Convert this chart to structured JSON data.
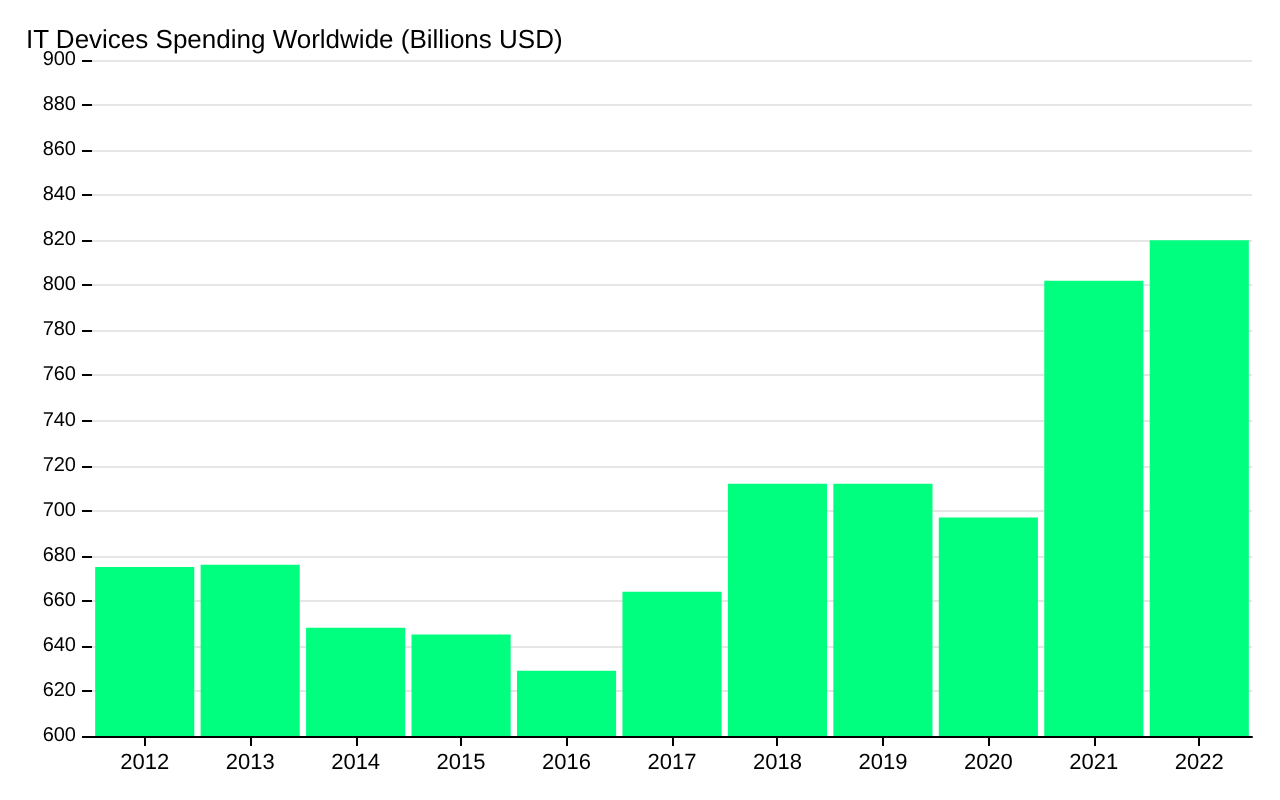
{
  "chart_data": {
    "type": "bar",
    "title": "IT Devices Spending Worldwide (Billions USD)",
    "categories": [
      "2012",
      "2013",
      "2014",
      "2015",
      "2016",
      "2017",
      "2018",
      "2019",
      "2020",
      "2021",
      "2022"
    ],
    "values": [
      675,
      676,
      648,
      645,
      629,
      664,
      712,
      712,
      697,
      802,
      820
    ],
    "color": "#00ff7f",
    "ylim": [
      600,
      900
    ],
    "yticks": [
      600,
      620,
      640,
      660,
      680,
      700,
      720,
      740,
      760,
      780,
      800,
      820,
      840,
      860,
      880,
      900
    ],
    "grid": "y"
  }
}
